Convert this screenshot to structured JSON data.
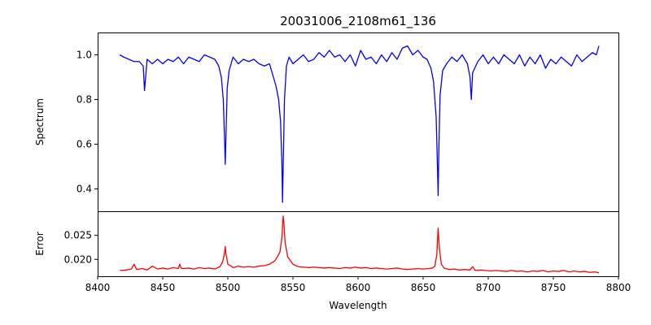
{
  "chart_data": [
    {
      "type": "line",
      "title": "20031006_2108m61_136",
      "ylabel": "Spectrum",
      "xlabel": "",
      "xlim": [
        8400,
        8800
      ],
      "ylim": [
        0.3,
        1.1
      ],
      "yticks": [
        0.4,
        0.6,
        0.8,
        1.0
      ],
      "ytick_labels": [
        "0.4",
        "0.6",
        "0.8",
        "1.0"
      ],
      "grid": false,
      "series": [
        {
          "color": "#0000ff",
          "x": [
            8417,
            8420,
            8424,
            8428,
            8432,
            8435,
            8436,
            8438,
            8442,
            8446,
            8450,
            8454,
            8458,
            8462,
            8466,
            8470,
            8474,
            8478,
            8482,
            8486,
            8490,
            8493,
            8495,
            8496.5,
            8497.5,
            8498,
            8498.5,
            8499.5,
            8501,
            8504,
            8508,
            8512,
            8516,
            8520,
            8524,
            8528,
            8532,
            8535,
            8537,
            8539,
            8540.5,
            8541.5,
            8542,
            8542.5,
            8543.5,
            8545,
            8547,
            8550,
            8554,
            8558,
            8562,
            8566,
            8570,
            8574,
            8578,
            8582,
            8586,
            8590,
            8594,
            8598,
            8602,
            8606,
            8610,
            8614,
            8618,
            8622,
            8626,
            8630,
            8634,
            8638,
            8642,
            8646,
            8650,
            8653,
            8656,
            8658,
            8660,
            8661,
            8661.5,
            8662,
            8663,
            8665,
            8668,
            8672,
            8676,
            8680,
            8684,
            8686,
            8687,
            8688,
            8692,
            8696,
            8700,
            8704,
            8708,
            8712,
            8716,
            8720,
            8724,
            8728,
            8732,
            8736,
            8740,
            8744,
            8748,
            8752,
            8756,
            8760,
            8764,
            8768,
            8772,
            8776,
            8780,
            8783,
            8785
          ],
          "y": [
            1.0,
            0.99,
            0.98,
            0.97,
            0.97,
            0.95,
            0.84,
            0.98,
            0.96,
            0.98,
            0.96,
            0.98,
            0.97,
            0.99,
            0.96,
            0.99,
            0.98,
            0.97,
            1.0,
            0.99,
            0.98,
            0.95,
            0.9,
            0.8,
            0.62,
            0.51,
            0.62,
            0.85,
            0.93,
            0.99,
            0.96,
            0.98,
            0.97,
            0.98,
            0.96,
            0.95,
            0.96,
            0.9,
            0.86,
            0.8,
            0.7,
            0.52,
            0.34,
            0.5,
            0.8,
            0.95,
            0.99,
            0.96,
            0.98,
            1.0,
            0.97,
            0.98,
            1.01,
            0.99,
            1.02,
            0.99,
            1.0,
            0.97,
            1.0,
            0.95,
            1.02,
            0.98,
            0.99,
            0.96,
            1.0,
            0.97,
            1.01,
            0.98,
            1.03,
            1.04,
            1.0,
            1.02,
            0.99,
            0.98,
            0.94,
            0.88,
            0.72,
            0.5,
            0.37,
            0.55,
            0.82,
            0.93,
            0.96,
            0.99,
            0.97,
            1.0,
            0.96,
            0.9,
            0.8,
            0.92,
            0.97,
            1.0,
            0.96,
            0.99,
            0.96,
            1.0,
            0.98,
            0.96,
            1.0,
            0.95,
            0.99,
            0.96,
            1.0,
            0.94,
            0.98,
            0.96,
            0.99,
            0.97,
            0.95,
            1.0,
            0.97,
            0.99,
            1.01,
            1.0,
            1.04
          ]
        }
      ]
    },
    {
      "type": "line",
      "title": "",
      "ylabel": "Error",
      "xlabel": "Wavelength",
      "xlim": [
        8400,
        8800
      ],
      "ylim": [
        0.0165,
        0.03
      ],
      "yticks": [
        0.02,
        0.025
      ],
      "ytick_labels": [
        "0.020",
        "0.025"
      ],
      "xticks": [
        8400,
        8450,
        8500,
        8550,
        8600,
        8650,
        8700,
        8750,
        8800
      ],
      "xtick_labels": [
        "8400",
        "8450",
        "8500",
        "8550",
        "8600",
        "8650",
        "8700",
        "8750",
        "8800"
      ],
      "grid": false,
      "series": [
        {
          "color": "#ff0000",
          "x": [
            8417,
            8422,
            8426,
            8428,
            8430,
            8434,
            8438,
            8442,
            8446,
            8450,
            8454,
            8458,
            8462,
            8463,
            8464,
            8466,
            8470,
            8474,
            8478,
            8482,
            8486,
            8490,
            8494,
            8496,
            8497.5,
            8498,
            8498.5,
            8500,
            8502,
            8504,
            8508,
            8512,
            8516,
            8520,
            8524,
            8528,
            8532,
            8536,
            8538,
            8540,
            8541.5,
            8542.5,
            8543,
            8544,
            8546,
            8550,
            8554,
            8558,
            8562,
            8566,
            8570,
            8574,
            8578,
            8582,
            8586,
            8590,
            8594,
            8598,
            8602,
            8606,
            8610,
            8614,
            8618,
            8622,
            8626,
            8630,
            8634,
            8638,
            8642,
            8646,
            8650,
            8654,
            8657,
            8659,
            8660.5,
            8661.5,
            8662.5,
            8664,
            8666,
            8670,
            8674,
            8678,
            8682,
            8686,
            8688,
            8690,
            8694,
            8698,
            8702,
            8706,
            8710,
            8714,
            8718,
            8722,
            8726,
            8730,
            8734,
            8738,
            8742,
            8746,
            8750,
            8754,
            8758,
            8762,
            8766,
            8770,
            8774,
            8778,
            8782,
            8785
          ],
          "y": [
            0.0177,
            0.0178,
            0.018,
            0.019,
            0.0179,
            0.0181,
            0.0178,
            0.0186,
            0.018,
            0.0182,
            0.018,
            0.0183,
            0.0181,
            0.019,
            0.0182,
            0.0181,
            0.0182,
            0.018,
            0.0183,
            0.0181,
            0.0182,
            0.018,
            0.0185,
            0.0195,
            0.0213,
            0.0227,
            0.0212,
            0.019,
            0.0187,
            0.0183,
            0.0186,
            0.0184,
            0.0185,
            0.0184,
            0.0186,
            0.0187,
            0.019,
            0.0197,
            0.0205,
            0.0215,
            0.0245,
            0.029,
            0.0278,
            0.0235,
            0.0205,
            0.019,
            0.0185,
            0.0184,
            0.0183,
            0.0184,
            0.0183,
            0.0182,
            0.0183,
            0.0182,
            0.0181,
            0.0183,
            0.0182,
            0.0184,
            0.0182,
            0.0183,
            0.0181,
            0.0182,
            0.0181,
            0.018,
            0.0181,
            0.0182,
            0.018,
            0.0179,
            0.018,
            0.0181,
            0.018,
            0.0181,
            0.0182,
            0.0186,
            0.021,
            0.0265,
            0.0222,
            0.019,
            0.0182,
            0.0179,
            0.018,
            0.0178,
            0.0179,
            0.0178,
            0.0185,
            0.0177,
            0.0178,
            0.0177,
            0.0176,
            0.0177,
            0.0176,
            0.0175,
            0.0177,
            0.0175,
            0.0176,
            0.0174,
            0.0176,
            0.0175,
            0.0177,
            0.0174,
            0.0176,
            0.0175,
            0.0177,
            0.0174,
            0.0176,
            0.0174,
            0.0175,
            0.0173,
            0.0174,
            0.0172
          ]
        }
      ]
    }
  ]
}
